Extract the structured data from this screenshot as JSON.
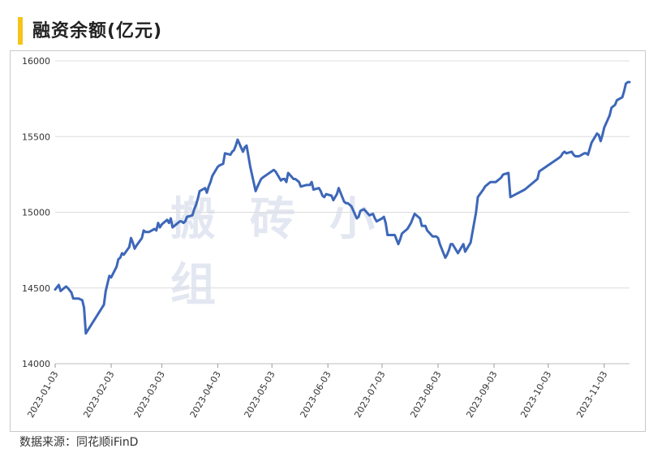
{
  "title": "融资余额(亿元)",
  "footer": "数据来源：同花顺iFinD",
  "watermark": "搬砖小组",
  "chart_data": {
    "type": "line",
    "title": "融资余额(亿元)",
    "xlabel": "",
    "ylabel": "",
    "ylim": [
      14000,
      16000
    ],
    "yticks": [
      14000,
      14500,
      15000,
      15500,
      16000
    ],
    "xticks": [
      "2023-01-03",
      "2023-02-03",
      "2023-03-03",
      "2023-04-03",
      "2023-05-03",
      "2023-06-03",
      "2023-07-03",
      "2023-08-03",
      "2023-09-03",
      "2023-10-03",
      "2023-11-03"
    ],
    "grid": true,
    "line_color": "#3d67b8",
    "series": [
      {
        "name": "",
        "points": [
          [
            "2023-01-03",
            14490
          ],
          [
            "2023-01-05",
            14520
          ],
          [
            "2023-01-06",
            14480
          ],
          [
            "2023-01-09",
            14510
          ],
          [
            "2023-01-10",
            14500
          ],
          [
            "2023-01-12",
            14470
          ],
          [
            "2023-01-13",
            14430
          ],
          [
            "2023-01-16",
            14430
          ],
          [
            "2023-01-18",
            14420
          ],
          [
            "2023-01-19",
            14370
          ],
          [
            "2023-01-20",
            14200
          ],
          [
            "2023-01-30",
            14390
          ],
          [
            "2023-01-31",
            14480
          ],
          [
            "2023-02-02",
            14580
          ],
          [
            "2023-02-03",
            14570
          ],
          [
            "2023-02-06",
            14640
          ],
          [
            "2023-02-07",
            14690
          ],
          [
            "2023-02-08",
            14700
          ],
          [
            "2023-02-09",
            14730
          ],
          [
            "2023-02-10",
            14720
          ],
          [
            "2023-02-13",
            14770
          ],
          [
            "2023-02-14",
            14830
          ],
          [
            "2023-02-15",
            14800
          ],
          [
            "2023-02-16",
            14760
          ],
          [
            "2023-02-17",
            14780
          ],
          [
            "2023-02-20",
            14830
          ],
          [
            "2023-02-21",
            14880
          ],
          [
            "2023-02-22",
            14870
          ],
          [
            "2023-02-24",
            14870
          ],
          [
            "2023-02-27",
            14890
          ],
          [
            "2023-02-28",
            14880
          ],
          [
            "2023-03-01",
            14930
          ],
          [
            "2023-03-02",
            14900
          ],
          [
            "2023-03-03",
            14920
          ],
          [
            "2023-03-06",
            14950
          ],
          [
            "2023-03-07",
            14930
          ],
          [
            "2023-03-08",
            14960
          ],
          [
            "2023-03-09",
            14900
          ],
          [
            "2023-03-10",
            14910
          ],
          [
            "2023-03-13",
            14940
          ],
          [
            "2023-03-14",
            14940
          ],
          [
            "2023-03-15",
            14930
          ],
          [
            "2023-03-16",
            14940
          ],
          [
            "2023-03-17",
            14970
          ],
          [
            "2023-03-20",
            14980
          ],
          [
            "2023-03-21",
            15020
          ],
          [
            "2023-03-22",
            15050
          ],
          [
            "2023-03-23",
            15090
          ],
          [
            "2023-03-24",
            15140
          ],
          [
            "2023-03-27",
            15160
          ],
          [
            "2023-03-28",
            15130
          ],
          [
            "2023-03-29",
            15170
          ],
          [
            "2023-03-30",
            15200
          ],
          [
            "2023-03-31",
            15240
          ],
          [
            "2023-04-03",
            15300
          ],
          [
            "2023-04-04",
            15310
          ],
          [
            "2023-04-06",
            15320
          ],
          [
            "2023-04-07",
            15390
          ],
          [
            "2023-04-10",
            15380
          ],
          [
            "2023-04-11",
            15400
          ],
          [
            "2023-04-12",
            15410
          ],
          [
            "2023-04-13",
            15440
          ],
          [
            "2023-04-14",
            15480
          ],
          [
            "2023-04-17",
            15400
          ],
          [
            "2023-04-18",
            15430
          ],
          [
            "2023-04-19",
            15440
          ],
          [
            "2023-04-21",
            15300
          ],
          [
            "2023-04-24",
            15140
          ],
          [
            "2023-04-25",
            15170
          ],
          [
            "2023-04-27",
            15220
          ],
          [
            "2023-04-28",
            15230
          ],
          [
            "2023-05-04",
            15280
          ],
          [
            "2023-05-05",
            15270
          ],
          [
            "2023-05-08",
            15210
          ],
          [
            "2023-05-09",
            15220
          ],
          [
            "2023-05-10",
            15220
          ],
          [
            "2023-05-11",
            15200
          ],
          [
            "2023-05-12",
            15260
          ],
          [
            "2023-05-15",
            15220
          ],
          [
            "2023-05-16",
            15220
          ],
          [
            "2023-05-18",
            15200
          ],
          [
            "2023-05-19",
            15170
          ],
          [
            "2023-05-22",
            15180
          ],
          [
            "2023-05-24",
            15180
          ],
          [
            "2023-05-25",
            15200
          ],
          [
            "2023-05-26",
            15150
          ],
          [
            "2023-05-29",
            15160
          ],
          [
            "2023-05-30",
            15140
          ],
          [
            "2023-05-31",
            15110
          ],
          [
            "2023-06-01",
            15100
          ],
          [
            "2023-06-02",
            15120
          ],
          [
            "2023-06-05",
            15110
          ],
          [
            "2023-06-06",
            15080
          ],
          [
            "2023-06-07",
            15100
          ],
          [
            "2023-06-08",
            15120
          ],
          [
            "2023-06-09",
            15160
          ],
          [
            "2023-06-12",
            15070
          ],
          [
            "2023-06-13",
            15060
          ],
          [
            "2023-06-14",
            15060
          ],
          [
            "2023-06-15",
            15050
          ],
          [
            "2023-06-16",
            15040
          ],
          [
            "2023-06-19",
            14960
          ],
          [
            "2023-06-20",
            14970
          ],
          [
            "2023-06-21",
            15010
          ],
          [
            "2023-06-23",
            15020
          ],
          [
            "2023-06-26",
            14980
          ],
          [
            "2023-06-28",
            14990
          ],
          [
            "2023-06-29",
            14960
          ],
          [
            "2023-06-30",
            14940
          ],
          [
            "2023-07-03",
            14960
          ],
          [
            "2023-07-04",
            14970
          ],
          [
            "2023-07-05",
            14930
          ],
          [
            "2023-07-06",
            14850
          ],
          [
            "2023-07-07",
            14850
          ],
          [
            "2023-07-10",
            14850
          ],
          [
            "2023-07-11",
            14820
          ],
          [
            "2023-07-12",
            14790
          ],
          [
            "2023-07-13",
            14820
          ],
          [
            "2023-07-14",
            14860
          ],
          [
            "2023-07-17",
            14890
          ],
          [
            "2023-07-18",
            14910
          ],
          [
            "2023-07-19",
            14930
          ],
          [
            "2023-07-20",
            14960
          ],
          [
            "2023-07-21",
            14990
          ],
          [
            "2023-07-24",
            14960
          ],
          [
            "2023-07-25",
            14910
          ],
          [
            "2023-07-26",
            14910
          ],
          [
            "2023-07-27",
            14910
          ],
          [
            "2023-07-28",
            14880
          ],
          [
            "2023-07-31",
            14840
          ],
          [
            "2023-08-01",
            14840
          ],
          [
            "2023-08-02",
            14840
          ],
          [
            "2023-08-03",
            14830
          ],
          [
            "2023-08-04",
            14790
          ],
          [
            "2023-08-07",
            14700
          ],
          [
            "2023-08-08",
            14720
          ],
          [
            "2023-08-09",
            14750
          ],
          [
            "2023-08-10",
            14790
          ],
          [
            "2023-08-11",
            14790
          ],
          [
            "2023-08-14",
            14730
          ],
          [
            "2023-08-15",
            14750
          ],
          [
            "2023-08-16",
            14770
          ],
          [
            "2023-08-17",
            14790
          ],
          [
            "2023-08-18",
            14740
          ],
          [
            "2023-08-21",
            14800
          ],
          [
            "2023-08-24",
            15000
          ],
          [
            "2023-08-25",
            15100
          ],
          [
            "2023-08-28",
            15150
          ],
          [
            "2023-08-29",
            15170
          ],
          [
            "2023-08-30",
            15180
          ],
          [
            "2023-09-01",
            15200
          ],
          [
            "2023-09-04",
            15200
          ],
          [
            "2023-09-05",
            15210
          ],
          [
            "2023-09-06",
            15220
          ],
          [
            "2023-09-07",
            15230
          ],
          [
            "2023-09-08",
            15250
          ],
          [
            "2023-09-11",
            15260
          ],
          [
            "2023-09-12",
            15100
          ],
          [
            "2023-09-20",
            15150
          ],
          [
            "2023-09-27",
            15220
          ],
          [
            "2023-09-28",
            15270
          ],
          [
            "2023-10-09",
            15360
          ],
          [
            "2023-10-10",
            15370
          ],
          [
            "2023-10-11",
            15390
          ],
          [
            "2023-10-12",
            15400
          ],
          [
            "2023-10-13",
            15390
          ],
          [
            "2023-10-16",
            15400
          ],
          [
            "2023-10-17",
            15380
          ],
          [
            "2023-10-18",
            15370
          ],
          [
            "2023-10-19",
            15370
          ],
          [
            "2023-10-20",
            15370
          ],
          [
            "2023-10-23",
            15390
          ],
          [
            "2023-10-24",
            15390
          ],
          [
            "2023-10-25",
            15380
          ],
          [
            "2023-10-26",
            15420
          ],
          [
            "2023-10-27",
            15460
          ],
          [
            "2023-10-30",
            15520
          ],
          [
            "2023-10-31",
            15510
          ],
          [
            "2023-11-01",
            15470
          ],
          [
            "2023-11-02",
            15510
          ],
          [
            "2023-11-03",
            15560
          ],
          [
            "2023-11-06",
            15640
          ],
          [
            "2023-11-07",
            15690
          ],
          [
            "2023-11-08",
            15700
          ],
          [
            "2023-11-09",
            15710
          ],
          [
            "2023-11-10",
            15740
          ],
          [
            "2023-11-13",
            15760
          ],
          [
            "2023-11-14",
            15800
          ],
          [
            "2023-11-15",
            15850
          ],
          [
            "2023-11-16",
            15860
          ],
          [
            "2023-11-17",
            15860
          ]
        ]
      }
    ]
  }
}
